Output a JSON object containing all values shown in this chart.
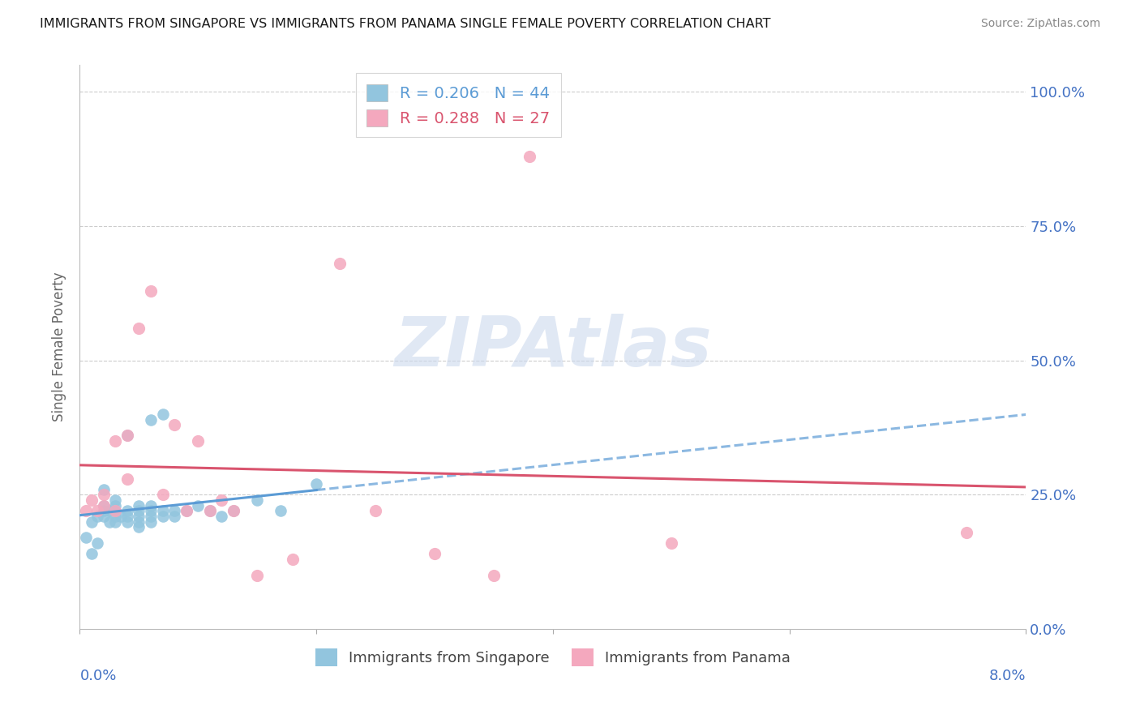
{
  "title": "IMMIGRANTS FROM SINGAPORE VS IMMIGRANTS FROM PANAMA SINGLE FEMALE POVERTY CORRELATION CHART",
  "source": "Source: ZipAtlas.com",
  "ylabel": "Single Female Poverty",
  "legend_r_singapore": "R = 0.206",
  "legend_n_singapore": "N = 44",
  "legend_r_panama": "R = 0.288",
  "legend_n_panama": "N = 27",
  "singapore_color": "#92c5de",
  "panama_color": "#f4a8be",
  "singapore_line_color": "#5b9bd5",
  "panama_line_color": "#d9546e",
  "watermark_text": "ZIPAtlas",
  "watermark_color": "#ccd9ee",
  "singapore_x": [
    0.0005,
    0.001,
    0.001,
    0.0015,
    0.0015,
    0.002,
    0.002,
    0.002,
    0.002,
    0.0025,
    0.0025,
    0.003,
    0.003,
    0.003,
    0.003,
    0.003,
    0.0035,
    0.004,
    0.004,
    0.004,
    0.004,
    0.005,
    0.005,
    0.005,
    0.005,
    0.005,
    0.006,
    0.006,
    0.006,
    0.006,
    0.006,
    0.007,
    0.007,
    0.007,
    0.008,
    0.008,
    0.009,
    0.01,
    0.011,
    0.012,
    0.013,
    0.015,
    0.017,
    0.02
  ],
  "singapore_y": [
    0.17,
    0.2,
    0.14,
    0.21,
    0.16,
    0.21,
    0.22,
    0.23,
    0.26,
    0.2,
    0.22,
    0.2,
    0.21,
    0.22,
    0.23,
    0.24,
    0.21,
    0.2,
    0.21,
    0.22,
    0.36,
    0.19,
    0.2,
    0.21,
    0.22,
    0.23,
    0.2,
    0.21,
    0.22,
    0.23,
    0.39,
    0.21,
    0.22,
    0.4,
    0.21,
    0.22,
    0.22,
    0.23,
    0.22,
    0.21,
    0.22,
    0.24,
    0.22,
    0.27
  ],
  "panama_x": [
    0.0005,
    0.001,
    0.0015,
    0.002,
    0.002,
    0.003,
    0.003,
    0.004,
    0.004,
    0.005,
    0.006,
    0.007,
    0.008,
    0.009,
    0.01,
    0.011,
    0.012,
    0.013,
    0.015,
    0.018,
    0.022,
    0.025,
    0.03,
    0.035,
    0.038,
    0.05,
    0.075
  ],
  "panama_y": [
    0.22,
    0.24,
    0.22,
    0.25,
    0.23,
    0.22,
    0.35,
    0.28,
    0.36,
    0.56,
    0.63,
    0.25,
    0.38,
    0.22,
    0.35,
    0.22,
    0.24,
    0.22,
    0.1,
    0.13,
    0.68,
    0.22,
    0.14,
    0.1,
    0.88,
    0.16,
    0.18
  ],
  "xmin": 0.0,
  "xmax": 0.08,
  "ymin": 0.0,
  "ymax": 1.05,
  "right_yticks": [
    0.0,
    0.25,
    0.5,
    0.75,
    1.0
  ],
  "right_yticklabels": [
    "0.0%",
    "25.0%",
    "50.0%",
    "75.0%",
    "100.0%"
  ],
  "hgrid_ticks": [
    0.25,
    0.5,
    0.75,
    1.0
  ],
  "sg_line_solid_end": 0.02,
  "pa_line_solid_end": 0.08
}
